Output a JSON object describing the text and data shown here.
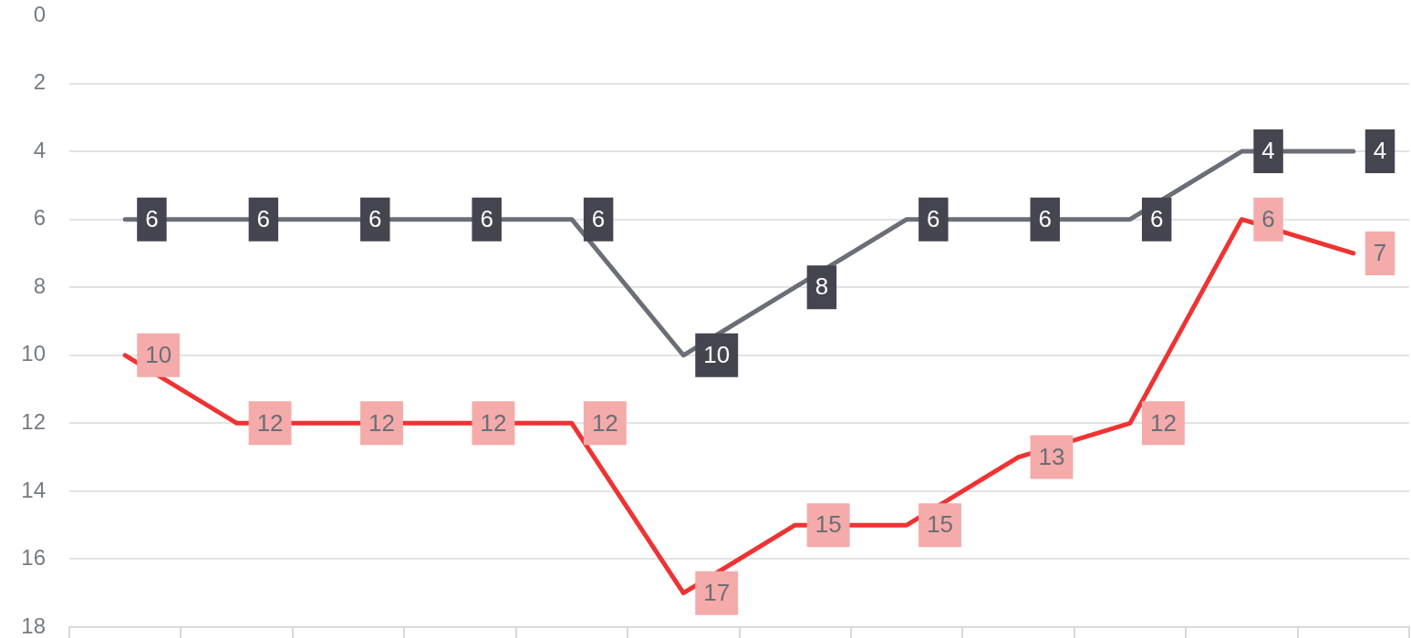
{
  "chart_data": {
    "type": "line",
    "categories": [
      null,
      null,
      null,
      null,
      null,
      null,
      null,
      null,
      null,
      null,
      null,
      null
    ],
    "series": [
      {
        "color": "#6b6e76",
        "values": [
          6,
          6,
          6,
          6,
          6,
          10,
          8,
          6,
          6,
          6,
          4,
          4
        ]
      },
      {
        "color": "#ee3333",
        "values": [
          10,
          12,
          12,
          12,
          12,
          17,
          15,
          15,
          13,
          12,
          6,
          7
        ]
      }
    ],
    "ylim": [
      18,
      0
    ],
    "yticks": [
      0,
      2,
      4,
      6,
      8,
      10,
      12,
      14,
      16,
      18
    ],
    "grid": "y",
    "tick_labels": "y",
    "data_labels": true,
    "marker": "none",
    "line_style": "solid"
  }
}
